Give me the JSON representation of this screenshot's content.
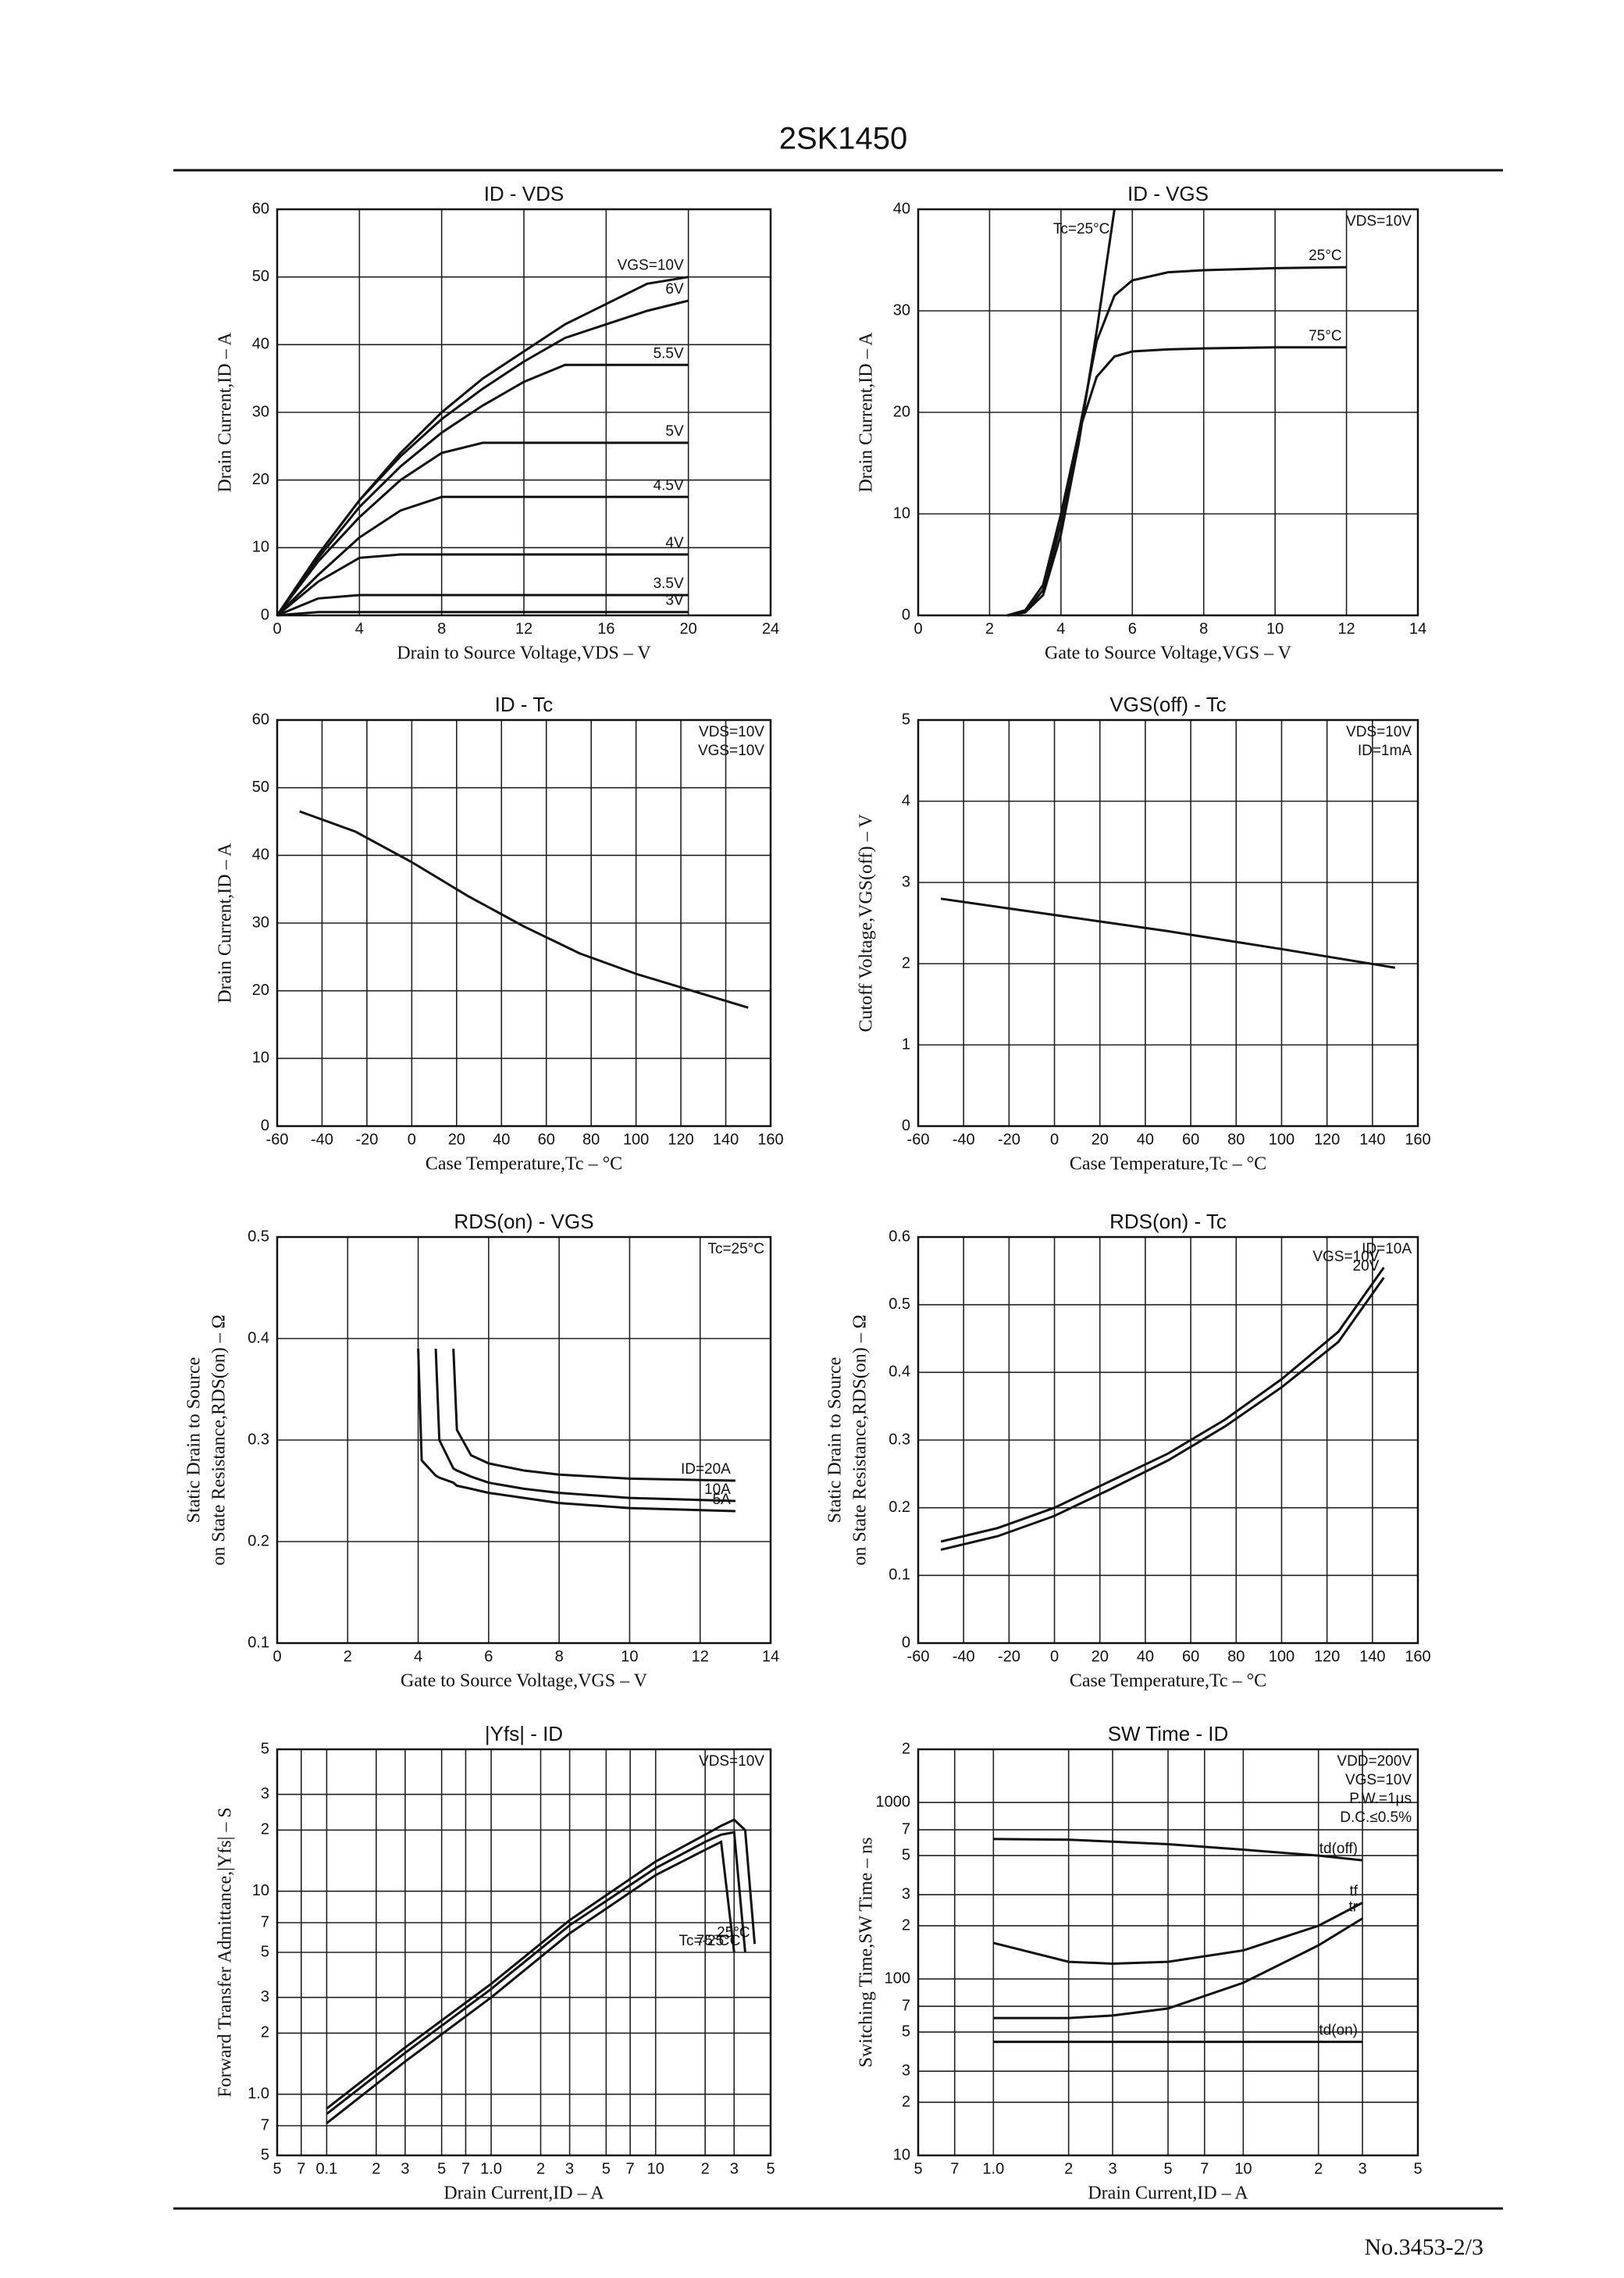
{
  "header": {
    "title": "2SK1450"
  },
  "footer": {
    "doc_number": "No.3453-2/3"
  },
  "chart_data": [
    {
      "type": "line",
      "title": "ID - VDS",
      "x_label": "Drain to Source Voltage,VDS – V",
      "y_label": "Drain Current,ID – A",
      "xlim": [
        0,
        24
      ],
      "xticks": [
        0,
        4,
        8,
        12,
        16,
        20,
        24
      ],
      "ylim": [
        0,
        60
      ],
      "yticks": [
        0,
        10,
        20,
        30,
        40,
        50,
        60
      ],
      "grid": true,
      "color": "#111",
      "x": [
        0,
        2,
        4,
        6,
        8,
        10,
        12,
        14,
        16,
        18,
        20
      ],
      "series": [
        {
          "name": "VGS=10V",
          "values": [
            0,
            9,
            17,
            24,
            30,
            35,
            39,
            43,
            46,
            49,
            50
          ]
        },
        {
          "name": "6V",
          "values": [
            0,
            9,
            17,
            23.5,
            29,
            33.5,
            37.5,
            41,
            43,
            45,
            46.5
          ]
        },
        {
          "name": "5.5V",
          "values": [
            0,
            8.5,
            16,
            22,
            27,
            31,
            34.5,
            37,
            37,
            37,
            37
          ]
        },
        {
          "name": "5V",
          "values": [
            0,
            8,
            14.5,
            20,
            24,
            25.5,
            25.5,
            25.5,
            25.5,
            25.5,
            25.5
          ]
        },
        {
          "name": "4.5V",
          "values": [
            0,
            6,
            11.5,
            15.5,
            17.5,
            17.5,
            17.5,
            17.5,
            17.5,
            17.5,
            17.5
          ]
        },
        {
          "name": "4V",
          "values": [
            0,
            5,
            8.5,
            9,
            9,
            9,
            9,
            9,
            9,
            9,
            9
          ]
        },
        {
          "name": "3.5V",
          "values": [
            0,
            2.5,
            3,
            3,
            3,
            3,
            3,
            3,
            3,
            3,
            3
          ]
        },
        {
          "name": "3V",
          "values": [
            0,
            0.5,
            0.5,
            0.5,
            0.5,
            0.5,
            0.5,
            0.5,
            0.5,
            0.5,
            0.5
          ]
        }
      ]
    },
    {
      "type": "line",
      "title": "ID - VGS",
      "x_label": "Gate to Source Voltage,VGS – V",
      "y_label": "Drain Current,ID – A",
      "xlim": [
        0,
        14
      ],
      "xticks": [
        0,
        2,
        4,
        6,
        8,
        10,
        12,
        14
      ],
      "ylim": [
        0,
        40
      ],
      "yticks": [
        0,
        10,
        20,
        30,
        40
      ],
      "grid": true,
      "color": "#111",
      "annotations": [
        "VDS=10V"
      ],
      "x": [
        2.5,
        3,
        3.5,
        4,
        4.5,
        5,
        5.5,
        6,
        7,
        8,
        10,
        12
      ],
      "series": [
        {
          "name": "Tc=25°C",
          "values": [
            0,
            0.3,
            2,
            8,
            17,
            28,
            40,
            null,
            null,
            null,
            null,
            null
          ]
        },
        {
          "name": "25°C",
          "values": [
            0,
            0.3,
            2.5,
            9,
            18,
            27,
            31.5,
            33,
            33.8,
            34,
            34.2,
            34.3
          ]
        },
        {
          "name": "75°C",
          "values": [
            0,
            0.5,
            3,
            10,
            18,
            23.5,
            25.5,
            26,
            26.2,
            26.3,
            26.4,
            26.4
          ]
        }
      ]
    },
    {
      "type": "line",
      "title": "ID - Tc",
      "x_label": "Case Temperature,Tc – °C",
      "y_label": "Drain Current,ID – A",
      "xlim": [
        -60,
        160
      ],
      "xticks": [
        -60,
        -40,
        -20,
        0,
        20,
        40,
        60,
        80,
        100,
        120,
        140,
        160
      ],
      "ylim": [
        0,
        60
      ],
      "yticks": [
        0,
        10,
        20,
        30,
        40,
        50,
        60
      ],
      "grid": true,
      "color": "#111",
      "annotations": [
        "VDS=10V",
        "VGS=10V"
      ],
      "x": [
        -50,
        -25,
        0,
        25,
        50,
        75,
        100,
        125,
        150
      ],
      "series": [
        {
          "values": [
            46.5,
            43.5,
            39,
            34,
            29.5,
            25.5,
            22.5,
            20,
            17.5
          ]
        }
      ]
    },
    {
      "type": "line",
      "title": "VGS(off) - Tc",
      "x_label": "Case Temperature,Tc – °C",
      "y_label": "Cutoff Voltage,VGS(off) – V",
      "xlim": [
        -60,
        160
      ],
      "xticks": [
        -60,
        -40,
        -20,
        0,
        20,
        40,
        60,
        80,
        100,
        120,
        140,
        160
      ],
      "ylim": [
        0,
        5
      ],
      "yticks": [
        0,
        1,
        2,
        3,
        4,
        5
      ],
      "grid": true,
      "color": "#111",
      "annotations": [
        "VDS=10V",
        "ID=1mA"
      ],
      "x": [
        -50,
        0,
        50,
        100,
        150
      ],
      "series": [
        {
          "values": [
            2.8,
            2.6,
            2.4,
            2.18,
            1.95
          ]
        }
      ]
    },
    {
      "type": "line",
      "title": "RDS(on) - VGS",
      "x_label": "Gate to Source Voltage,VGS – V",
      "y_label": [
        "Static Drain to Source",
        "on State Resistance,RDS(on) – Ω"
      ],
      "xlim": [
        0,
        14
      ],
      "xticks": [
        0,
        2,
        4,
        6,
        8,
        10,
        12,
        14
      ],
      "ylim": [
        0.1,
        0.5
      ],
      "yticks": [
        0.1,
        0.2,
        0.3,
        0.4,
        0.5
      ],
      "grid": true,
      "color": "#111",
      "annotations": [
        "Tc=25°C"
      ],
      "x": [
        4,
        4.1,
        4.5,
        4.6,
        5,
        5.1,
        5.5,
        6,
        7,
        8,
        10,
        13
      ],
      "series": [
        {
          "name": "ID=20A",
          "values": [
            null,
            null,
            null,
            null,
            0.39,
            0.31,
            0.285,
            0.277,
            0.27,
            0.266,
            0.262,
            0.26
          ]
        },
        {
          "name": "10A",
          "values": [
            null,
            null,
            0.39,
            0.3,
            0.272,
            0.27,
            0.264,
            0.258,
            0.252,
            0.248,
            0.243,
            0.24
          ]
        },
        {
          "name": "5A",
          "values": [
            0.39,
            0.28,
            0.265,
            0.263,
            0.258,
            0.255,
            0.252,
            0.248,
            0.243,
            0.238,
            0.233,
            0.23
          ]
        }
      ]
    },
    {
      "type": "line",
      "title": "RDS(on) - Tc",
      "x_label": "Case Temperature,Tc – °C",
      "y_label": [
        "Static Drain to Source",
        "on State Resistance,RDS(on) – Ω"
      ],
      "xlim": [
        -60,
        160
      ],
      "xticks": [
        -60,
        -40,
        -20,
        0,
        20,
        40,
        60,
        80,
        100,
        120,
        140,
        160
      ],
      "ylim": [
        0,
        0.6
      ],
      "yticks": [
        0,
        0.1,
        0.2,
        0.3,
        0.4,
        0.5,
        0.6
      ],
      "grid": true,
      "color": "#111",
      "annotations": [
        "ID=10A"
      ],
      "x": [
        -50,
        -25,
        0,
        25,
        50,
        75,
        100,
        125,
        145
      ],
      "series": [
        {
          "name": "VGS=10V",
          "values": [
            0.15,
            0.17,
            0.2,
            0.24,
            0.28,
            0.33,
            0.39,
            0.46,
            0.555
          ]
        },
        {
          "name": "20V",
          "values": [
            0.138,
            0.158,
            0.188,
            0.228,
            0.27,
            0.32,
            0.378,
            0.445,
            0.54
          ]
        }
      ]
    },
    {
      "type": "line",
      "title": "|Yfs| - ID",
      "x_label": "Drain Current,ID – A",
      "y_label": "Forward Transfer Admittance,|Yfs| – S",
      "xscale": "log",
      "yscale": "log",
      "xlim": [
        0.05,
        50
      ],
      "xticks": [
        {
          "value": 0.05,
          "label": "5"
        },
        {
          "value": 0.07,
          "label": "7"
        },
        0.1,
        {
          "value": 0.2,
          "label": "2"
        },
        {
          "value": 0.3,
          "label": "3"
        },
        {
          "value": 0.5,
          "label": "5"
        },
        {
          "value": 0.7,
          "label": "7"
        },
        {
          "value": 1,
          "label": "1.0"
        },
        2,
        3,
        5,
        7,
        10,
        {
          "value": 20,
          "label": "2"
        },
        {
          "value": 30,
          "label": "3"
        },
        {
          "value": 50,
          "label": "5"
        }
      ],
      "ylim": [
        0.5,
        50
      ],
      "yticks": [
        {
          "value": 0.5,
          "label": "5"
        },
        {
          "value": 0.7,
          "label": "7"
        },
        {
          "value": 1,
          "label": "1.0"
        },
        2,
        3,
        5,
        7,
        10,
        {
          "value": 20,
          "label": "2"
        },
        {
          "value": 30,
          "label": "3"
        },
        {
          "value": 50,
          "label": "5"
        }
      ],
      "grid": true,
      "color": "#111",
      "annotations": [
        "VDS=10V"
      ],
      "x": [
        0.1,
        0.3,
        1,
        3,
        10,
        20,
        25,
        30,
        35,
        40
      ],
      "series": [
        {
          "name": "25°C",
          "values": [
            0.85,
            1.7,
            3.5,
            7.2,
            14,
            19,
            21,
            22.5,
            20,
            5.5
          ]
        },
        {
          "name": "Tc=-25°C",
          "values": [
            0.8,
            1.6,
            3.3,
            6.8,
            13,
            17.5,
            19,
            19.5,
            5,
            null
          ]
        },
        {
          "name": "75°C",
          "values": [
            0.72,
            1.45,
            3,
            6.2,
            12,
            16,
            17.5,
            5,
            null,
            null
          ]
        }
      ]
    },
    {
      "type": "line",
      "title": "SW Time - ID",
      "x_label": "Drain Current,ID – A",
      "y_label": "Switching Time,SW Time – ns",
      "xscale": "log",
      "yscale": "log",
      "xlim": [
        0.5,
        50
      ],
      "xticks": [
        {
          "value": 0.5,
          "label": "5"
        },
        {
          "value": 0.7,
          "label": "7"
        },
        {
          "value": 1,
          "label": "1.0"
        },
        2,
        3,
        5,
        7,
        10,
        {
          "value": 20,
          "label": "2"
        },
        {
          "value": 30,
          "label": "3"
        },
        {
          "value": 50,
          "label": "5"
        }
      ],
      "ylim": [
        10,
        2000
      ],
      "yticks": [
        10,
        {
          "value": 20,
          "label": "2"
        },
        {
          "value": 30,
          "label": "3"
        },
        {
          "value": 50,
          "label": "5"
        },
        {
          "value": 70,
          "label": "7"
        },
        100,
        {
          "value": 200,
          "label": "2"
        },
        {
          "value": 300,
          "label": "3"
        },
        {
          "value": 500,
          "label": "5"
        },
        {
          "value": 700,
          "label": "7"
        },
        1000,
        {
          "value": 2000,
          "label": "2"
        }
      ],
      "grid": true,
      "color": "#111",
      "annotations": [
        "VDD=200V",
        "VGS=10V",
        "P.W.=1μs",
        "D.C.≤0.5%"
      ],
      "x": [
        1,
        2,
        3,
        5,
        10,
        20,
        30
      ],
      "series": [
        {
          "name": "td(off)",
          "values": [
            620,
            615,
            600,
            580,
            540,
            500,
            470
          ]
        },
        {
          "name": "tf",
          "values": [
            160,
            125,
            122,
            125,
            145,
            200,
            270
          ]
        },
        {
          "name": "tr",
          "values": [
            60,
            60,
            62,
            68,
            95,
            155,
            220
          ]
        },
        {
          "name": "td(on)",
          "values": [
            44,
            44,
            44,
            44,
            44,
            44,
            44
          ]
        }
      ]
    }
  ]
}
